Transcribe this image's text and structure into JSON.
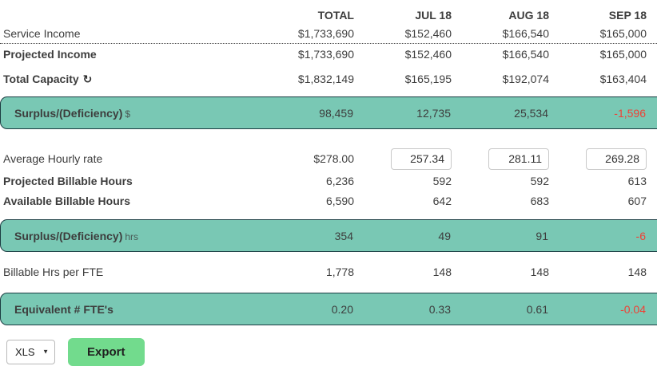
{
  "columns": [
    "TOTAL",
    "JUL 18",
    "AUG 18",
    "SEP 18"
  ],
  "rows": {
    "service_income": {
      "label": "Service Income",
      "values": [
        "$1,733,690",
        "$152,460",
        "$166,540",
        "$165,000"
      ]
    },
    "projected_income": {
      "label": "Projected Income",
      "values": [
        "$1,733,690",
        "$152,460",
        "$166,540",
        "$165,000"
      ]
    },
    "total_capacity": {
      "label": "Total Capacity",
      "refresh_icon": "↻",
      "values": [
        "$1,832,149",
        "$165,195",
        "$192,074",
        "$163,404"
      ]
    },
    "surplus_deficiency_dollars": {
      "label": "Surplus/(Deficiency)",
      "unit": "$",
      "values": [
        "98,459",
        "12,735",
        "25,534",
        "-1,596"
      ]
    },
    "average_hourly_rate": {
      "label": "Average Hourly rate",
      "total": "$278.00",
      "inputs": [
        "257.34",
        "281.11",
        "269.28"
      ]
    },
    "projected_billable_hours": {
      "label": "Projected Billable Hours",
      "values": [
        "6,236",
        "592",
        "592",
        "613"
      ]
    },
    "available_billable_hours": {
      "label": "Available Billable Hours",
      "values": [
        "6,590",
        "642",
        "683",
        "607"
      ]
    },
    "surplus_deficiency_hours": {
      "label": "Surplus/(Deficiency)",
      "unit": "hrs",
      "values": [
        "354",
        "49",
        "91",
        "-6"
      ]
    },
    "billable_hrs_per_fte": {
      "label": "Billable Hrs per FTE",
      "values": [
        "1,778",
        "148",
        "148",
        "148"
      ]
    },
    "equivalent_ftes": {
      "label": "Equivalent # FTE's",
      "values": [
        "0.20",
        "0.33",
        "0.61",
        "-0.04"
      ]
    }
  },
  "footer": {
    "export_format": "XLS",
    "dropdown_arrow": "▼",
    "export_button": "Export"
  },
  "colors": {
    "highlight_fill": "#79c8b4",
    "highlight_border": "#1b3c42",
    "negative_text": "#ef4136",
    "export_button_bg": "#72db8d"
  }
}
